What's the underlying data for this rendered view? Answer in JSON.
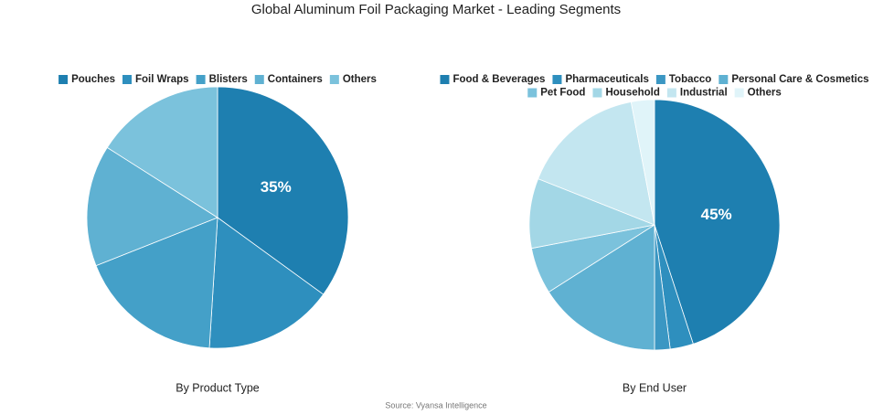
{
  "title": "Global Aluminum Foil Packaging Market - Leading Segments",
  "source": "Source: Vyansa Intelligence",
  "chart_data": [
    {
      "type": "pie",
      "subtitle": "By Product Type",
      "categories": [
        "Pouches",
        "Foil Wraps",
        "Blisters",
        "Containers",
        "Others"
      ],
      "values": [
        35,
        16,
        18,
        15,
        16
      ],
      "value_labels": [
        "35%",
        null,
        null,
        null,
        null
      ],
      "colors": [
        "#1e7fb0",
        "#2e8fbe",
        "#44a0c8",
        "#5fb1d2",
        "#7bc2dc"
      ]
    },
    {
      "type": "pie",
      "subtitle": "By End User",
      "categories": [
        "Food & Beverages",
        "Pharmaceuticals",
        "Tobacco",
        "Personal Care & Cosmetics",
        "Pet Food",
        "Household",
        "Industrial",
        "Others"
      ],
      "values": [
        45,
        3,
        2,
        16,
        6,
        9,
        16,
        3
      ],
      "value_labels": [
        "45%",
        null,
        null,
        null,
        null,
        null,
        null,
        null
      ],
      "colors": [
        "#1e7fb0",
        "#2e8fbe",
        "#3b97c3",
        "#5fb1d2",
        "#7bc2dc",
        "#a3d7e6",
        "#c3e6f0",
        "#e0f4f9"
      ]
    }
  ]
}
